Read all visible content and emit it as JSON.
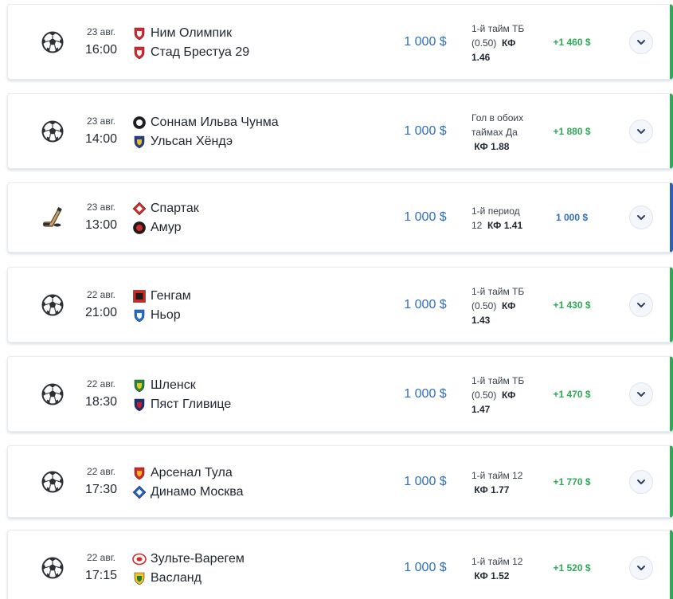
{
  "icons": {
    "football": "football-icon",
    "hockey": "hockey-stick-icon",
    "expand": "chevron-down-icon"
  },
  "colors": {
    "won_accent": "#2eaa55",
    "returned_accent": "#2a62b6",
    "stake_text": "#2f6fbf",
    "payout_win": "#2eaa55",
    "payout_return": "#2f6fbf"
  },
  "bets": [
    {
      "sport": "football",
      "status": "won",
      "date": "23 авг.",
      "time": "16:00",
      "team1": {
        "name": "Ним Олимпик",
        "logo": "nimes-logo"
      },
      "team2": {
        "name": "Стад Брестуа 29",
        "logo": "brest-logo"
      },
      "stake": "1 000 $",
      "bet_lines": [
        "1-й тайм ТБ",
        "(0.50)  КФ",
        "1.46"
      ],
      "payout": "+1 460 $"
    },
    {
      "sport": "football",
      "status": "won",
      "date": "23 авг.",
      "time": "14:00",
      "team1": {
        "name": "Соннам Ильва Чунма",
        "logo": "seongnam-logo"
      },
      "team2": {
        "name": "Ульсан Хёндэ",
        "logo": "ulsan-logo"
      },
      "stake": "1 000 $",
      "bet_lines": [
        "Гол в обоих",
        "таймах Да",
        " КФ 1.88"
      ],
      "payout": "+1 880 $"
    },
    {
      "sport": "hockey",
      "status": "returned",
      "date": "23 авг.",
      "time": "13:00",
      "team1": {
        "name": "Спартак",
        "logo": "spartak-logo"
      },
      "team2": {
        "name": "Амур",
        "logo": "amur-logo"
      },
      "stake": "1 000 $",
      "bet_lines": [
        "1-й период",
        "12  КФ 1.41"
      ],
      "payout": "1 000 $"
    },
    {
      "sport": "football",
      "status": "won",
      "date": "22 авг.",
      "time": "21:00",
      "team1": {
        "name": "Генгам",
        "logo": "guingamp-logo"
      },
      "team2": {
        "name": "Ньор",
        "logo": "niort-logo"
      },
      "stake": "1 000 $",
      "bet_lines": [
        "1-й тайм ТБ",
        "(0.50)  КФ",
        "1.43"
      ],
      "payout": "+1 430 $"
    },
    {
      "sport": "football",
      "status": "won",
      "date": "22 авг.",
      "time": "18:30",
      "team1": {
        "name": "Шленск",
        "logo": "slask-logo"
      },
      "team2": {
        "name": "Пяст Гливице",
        "logo": "piast-logo"
      },
      "stake": "1 000 $",
      "bet_lines": [
        "1-й тайм ТБ",
        "(0.50)  КФ",
        "1.47"
      ],
      "payout": "+1 470 $"
    },
    {
      "sport": "football",
      "status": "won",
      "date": "22 авг.",
      "time": "17:30",
      "team1": {
        "name": "Арсенал Тула",
        "logo": "arsenal-tula-logo"
      },
      "team2": {
        "name": "Динамо Москва",
        "logo": "dynamo-moscow-logo"
      },
      "stake": "1 000 $",
      "bet_lines": [
        "1-й тайм 12",
        " КФ 1.77"
      ],
      "payout": "+1 770 $"
    },
    {
      "sport": "football",
      "status": "won",
      "date": "22 авг.",
      "time": "17:15",
      "team1": {
        "name": "Зульте-Варегем",
        "logo": "zulte-waregem-logo"
      },
      "team2": {
        "name": "Васланд",
        "logo": "waasland-logo"
      },
      "stake": "1 000 $",
      "bet_lines": [
        "1-й тайм 12",
        " КФ 1.52"
      ],
      "payout": "+1 520 $"
    }
  ]
}
